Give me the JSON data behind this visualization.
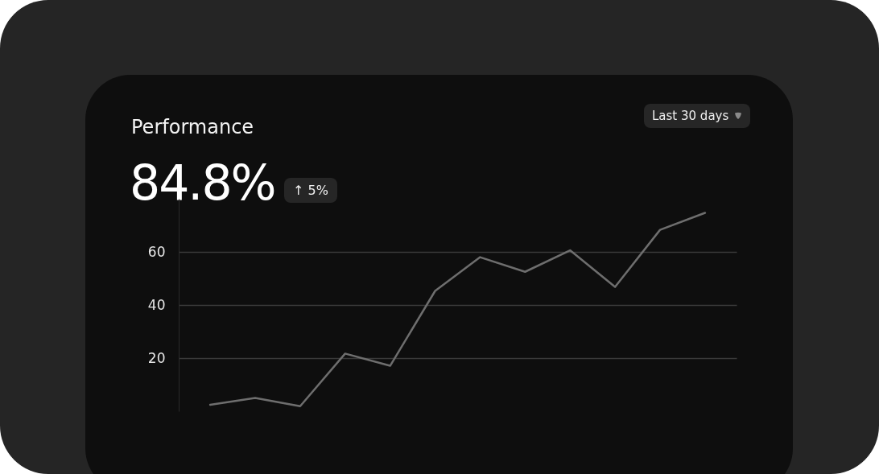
{
  "chart_data": {
    "type": "line",
    "title": "Performance",
    "subtitle": "84.8%",
    "annotations": [
      "↑ 5%",
      "Last 30 days"
    ],
    "categories": [
      null,
      null,
      null,
      null,
      null,
      null,
      null,
      null,
      null,
      null,
      null,
      null
    ],
    "series": [
      {
        "color": "#6e6e6e",
        "values": [
          2.4,
          5.0,
          1.9,
          21.7,
          17.1,
          45.3,
          58.0,
          52.5,
          60.6,
          46.8,
          68.3,
          74.7
        ]
      }
    ],
    "ylim": [
      0,
      80
    ],
    "yticks": [
      20,
      40,
      60
    ],
    "grid": "y",
    "tick_labels": "y"
  }
}
